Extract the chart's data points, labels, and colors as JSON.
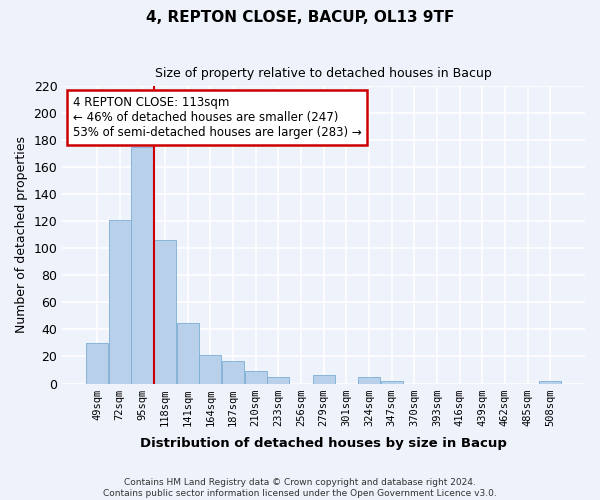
{
  "title": "4, REPTON CLOSE, BACUP, OL13 9TF",
  "subtitle": "Size of property relative to detached houses in Bacup",
  "xlabel": "Distribution of detached houses by size in Bacup",
  "ylabel": "Number of detached properties",
  "categories": [
    "49sqm",
    "72sqm",
    "95sqm",
    "118sqm",
    "141sqm",
    "164sqm",
    "187sqm",
    "210sqm",
    "233sqm",
    "256sqm",
    "279sqm",
    "301sqm",
    "324sqm",
    "347sqm",
    "370sqm",
    "393sqm",
    "416sqm",
    "439sqm",
    "462sqm",
    "485sqm",
    "508sqm"
  ],
  "values": [
    30,
    121,
    175,
    106,
    45,
    21,
    17,
    9,
    5,
    0,
    6,
    0,
    5,
    2,
    0,
    0,
    0,
    0,
    0,
    0,
    2
  ],
  "bar_color": "#b8d0ea",
  "bar_edge_color": "#7aadd4",
  "vline_color": "#cc0000",
  "ylim": [
    0,
    220
  ],
  "yticks": [
    0,
    20,
    40,
    60,
    80,
    100,
    120,
    140,
    160,
    180,
    200,
    220
  ],
  "annotation_title": "4 REPTON CLOSE: 113sqm",
  "annotation_line1": "← 46% of detached houses are smaller (247)",
  "annotation_line2": "53% of semi-detached houses are larger (283) →",
  "annotation_box_color": "#ffffff",
  "annotation_box_edge": "#cc0000",
  "background_color": "#eef2fa",
  "grid_color": "#ffffff",
  "footer_line1": "Contains HM Land Registry data © Crown copyright and database right 2024.",
  "footer_line2": "Contains public sector information licensed under the Open Government Licence v3.0."
}
